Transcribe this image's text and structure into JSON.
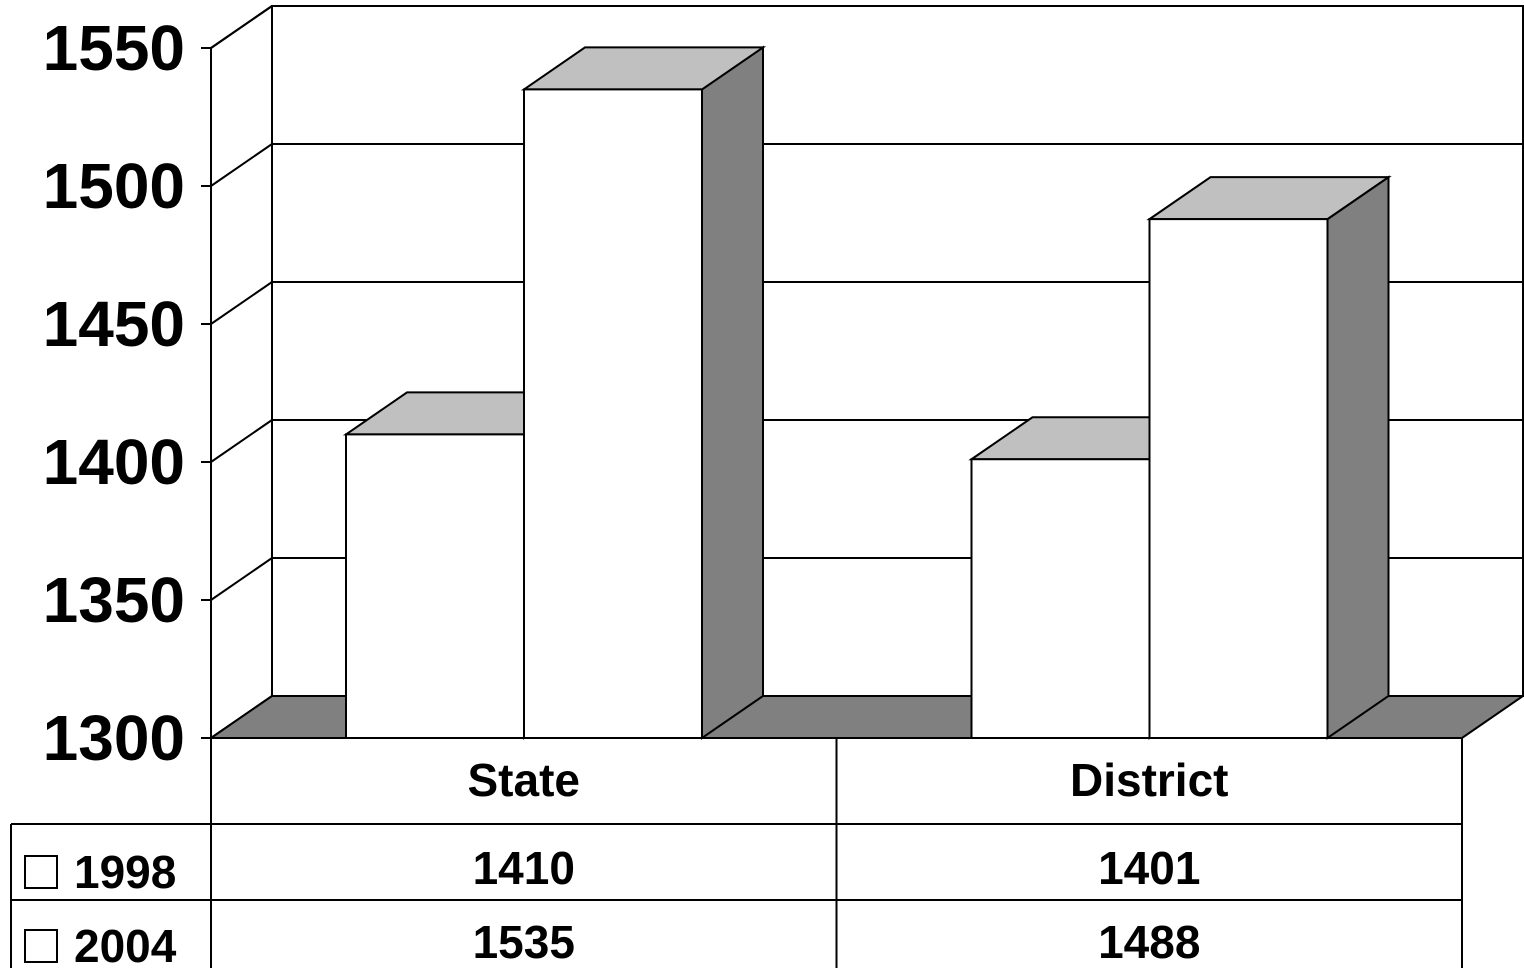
{
  "chart_data": {
    "type": "bar",
    "categories": [
      "State",
      "District"
    ],
    "series": [
      {
        "name": "1998",
        "values": [
          1410,
          1401
        ]
      },
      {
        "name": "2004",
        "values": [
          1535,
          1488
        ]
      }
    ],
    "ylim": [
      1300,
      1550
    ],
    "yticks": [
      "1300",
      "1350",
      "1400",
      "1450",
      "1500",
      "1550"
    ],
    "grid": true,
    "legend": "data-table",
    "style": "3d",
    "colors": {
      "front": "#ffffff",
      "top": "#c0c0c0",
      "side": "#808080",
      "floor": "#808080",
      "line": "#000000"
    }
  }
}
